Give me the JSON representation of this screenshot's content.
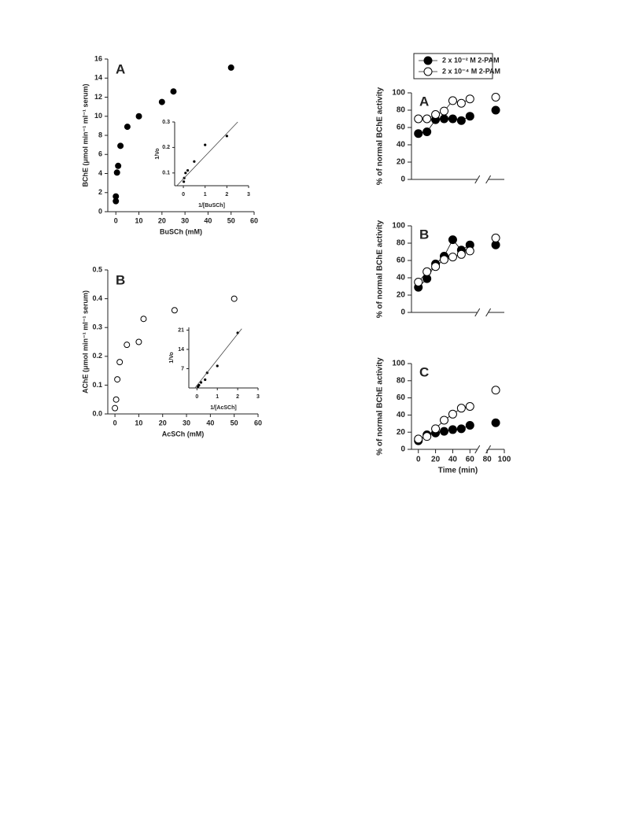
{
  "chart_data": [
    {
      "type": "scatter",
      "panel_label": "A",
      "xlabel": "BuSCh (mM)",
      "ylabel": "BChE (μmol min⁻¹ ml⁻¹ serum)",
      "xlim": [
        -3.5,
        60
      ],
      "ylim": [
        0,
        16
      ],
      "xticks": [
        0,
        10,
        20,
        30,
        40,
        50,
        60
      ],
      "yticks": [
        0,
        2,
        4,
        6,
        8,
        10,
        12,
        14,
        16
      ],
      "series": [
        {
          "name": "BChE",
          "color": "#000000",
          "filled": true,
          "x": [
            0,
            0,
            0.5,
            1,
            2,
            5,
            10,
            20,
            25,
            50
          ],
          "values": [
            1.1,
            1.6,
            4.1,
            4.8,
            6.9,
            8.9,
            10,
            11.5,
            12.6,
            15.1
          ]
        }
      ],
      "inset": {
        "xlabel": "1/[BuSCh]",
        "ylabel": "1/Vo",
        "xlim": [
          -0.4,
          3
        ],
        "ylim": [
          0.05,
          0.3
        ],
        "xticks": [
          0,
          1,
          2,
          3
        ],
        "yticks": [
          0.1,
          0.2,
          0.3
        ],
        "x": [
          0.02,
          0.04,
          0.1,
          0.2,
          0.5,
          1,
          2
        ],
        "values": [
          0.066,
          0.08,
          0.1,
          0.11,
          0.145,
          0.21,
          0.245
        ],
        "trend_line": {
          "x": [
            -0.3,
            2.5
          ],
          "y": [
            0.05,
            0.3
          ]
        }
      }
    },
    {
      "type": "scatter",
      "panel_label": "B",
      "xlabel": "AcSCh (mM)",
      "ylabel": "AChE (μmol min⁻¹ ml⁻¹ serum)",
      "xlim": [
        -3,
        60
      ],
      "ylim": [
        0,
        0.5
      ],
      "xticks": [
        0,
        10,
        20,
        30,
        40,
        50,
        60
      ],
      "yticks": [
        {
          "value": 0,
          "label": "0.0"
        },
        0.1,
        0.2,
        0.3,
        0.4,
        0.5
      ],
      "series": [
        {
          "name": "AChE",
          "color": "#000000",
          "filled": false,
          "x": [
            0,
            0.5,
            1,
            2,
            5,
            10,
            12,
            25,
            50
          ],
          "values": [
            0.02,
            0.05,
            0.12,
            0.18,
            0.24,
            0.25,
            0.33,
            0.36,
            0.4
          ]
        }
      ],
      "inset": {
        "xlabel": "1/[AcSCh]",
        "ylabel": "1/Vo",
        "xlim": [
          -0.4,
          3
        ],
        "ylim": [
          0,
          22
        ],
        "xticks": [
          0,
          1,
          2,
          3
        ],
        "yticks": [
          7,
          14,
          21
        ],
        "x": [
          0.05,
          0.1,
          0.2,
          0.4,
          0.5,
          1,
          2
        ],
        "values": [
          0.5,
          1,
          2,
          3,
          5.5,
          8,
          20
        ],
        "trend_line": {
          "x": [
            -0.1,
            2.2
          ],
          "y": [
            0,
            21.5
          ]
        }
      }
    },
    {
      "type": "line",
      "panel_label": "A",
      "ylabel": "% of normal BChE activity",
      "xlim": [
        -8,
        100
      ],
      "ylim": [
        0,
        100
      ],
      "yticks": [
        0,
        20,
        40,
        60,
        80,
        100
      ],
      "axis_break": [
        65,
        85
      ],
      "x": [
        0,
        10,
        20,
        30,
        40,
        50,
        60,
        90
      ],
      "series": [
        {
          "name": "2 x 10⁻² M 2-PAM",
          "color": "#000000",
          "filled": true,
          "values": [
            53,
            55,
            69,
            70,
            70,
            68,
            73,
            80
          ]
        },
        {
          "name": "2 x 10⁻⁴ M 2-PAM",
          "color": "#000000",
          "filled": false,
          "values": [
            70,
            70,
            75,
            79,
            91,
            88,
            93,
            95
          ]
        }
      ]
    },
    {
      "type": "line",
      "panel_label": "B",
      "ylabel": "% of normal BChE activity",
      "xlim": [
        -8,
        100
      ],
      "ylim": [
        0,
        100
      ],
      "yticks": [
        0,
        20,
        40,
        60,
        80,
        100
      ],
      "axis_break": [
        65,
        85
      ],
      "x": [
        0,
        10,
        20,
        30,
        40,
        50,
        60,
        90
      ],
      "series": [
        {
          "name": "2 x 10⁻² M 2-PAM",
          "color": "#000000",
          "filled": true,
          "values": [
            29,
            39,
            56,
            65,
            84,
            72,
            78,
            78
          ]
        },
        {
          "name": "2 x 10⁻⁴ M 2-PAM",
          "color": "#000000",
          "filled": false,
          "values": [
            35,
            47,
            53,
            61,
            64,
            67,
            71,
            86
          ]
        }
      ]
    },
    {
      "type": "line",
      "panel_label": "C",
      "ylabel": "% of normal BChE activity",
      "xlabel": "Time (min)",
      "xlim": [
        -8,
        100
      ],
      "ylim": [
        0,
        100
      ],
      "xticks": [
        0,
        20,
        40,
        60,
        80,
        100
      ],
      "yticks": [
        0,
        20,
        40,
        60,
        80,
        100
      ],
      "axis_break": [
        65,
        85
      ],
      "x": [
        0,
        10,
        20,
        30,
        40,
        50,
        60,
        90
      ],
      "series": [
        {
          "name": "2 x 10⁻² M 2-PAM",
          "color": "#000000",
          "filled": true,
          "values": [
            10,
            17,
            19,
            21,
            23,
            24,
            28,
            31
          ]
        },
        {
          "name": "2 x 10⁻⁴ M 2-PAM",
          "color": "#000000",
          "filled": false,
          "values": [
            12,
            15,
            24,
            34,
            41,
            48,
            50,
            69
          ]
        }
      ]
    }
  ]
}
